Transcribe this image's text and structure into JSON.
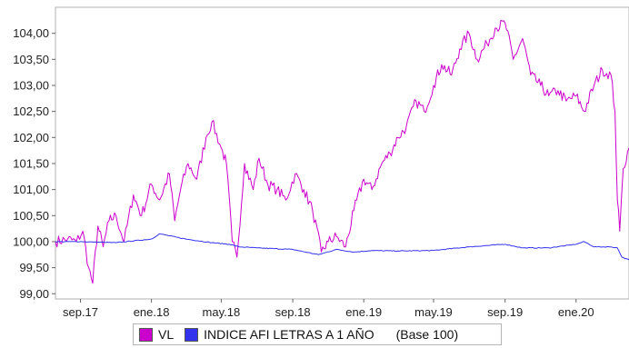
{
  "chart_data": {
    "type": "line",
    "ylim": [
      98.9,
      104.5
    ],
    "xlim": [
      "2017-07-20",
      "2020-04-01"
    ],
    "y_ticks": [
      "99,00",
      "99,50",
      "100,00",
      "100,50",
      "101,00",
      "101,50",
      "102,00",
      "102,50",
      "103,00",
      "103,50",
      "104,00"
    ],
    "y_tick_values": [
      99.0,
      99.5,
      100.0,
      100.5,
      101.0,
      101.5,
      102.0,
      102.5,
      103.0,
      103.5,
      104.0
    ],
    "x_ticks": [
      "sep.17",
      "ene.18",
      "may.18",
      "sep.18",
      "ene.19",
      "may.19",
      "sep.19",
      "ene.20"
    ],
    "x_tick_dates": [
      "2017-09-01",
      "2018-01-01",
      "2018-05-01",
      "2018-09-01",
      "2019-01-01",
      "2019-05-01",
      "2019-09-01",
      "2020-01-01"
    ],
    "grid": false,
    "legend_position": "bottom",
    "series": [
      {
        "name": "VL",
        "color": "#cc00cc",
        "x": [
          "2017-07-20",
          "2017-08-10",
          "2017-08-25",
          "2017-09-05",
          "2017-09-15",
          "2017-09-22",
          "2017-10-01",
          "2017-10-10",
          "2017-10-20",
          "2017-11-01",
          "2017-11-15",
          "2017-12-01",
          "2017-12-15",
          "2018-01-01",
          "2018-01-15",
          "2018-02-01",
          "2018-02-10",
          "2018-02-20",
          "2018-03-05",
          "2018-03-20",
          "2018-04-05",
          "2018-04-15",
          "2018-05-01",
          "2018-05-10",
          "2018-05-20",
          "2018-05-28",
          "2018-06-10",
          "2018-06-25",
          "2018-07-05",
          "2018-07-20",
          "2018-08-05",
          "2018-08-20",
          "2018-09-05",
          "2018-09-20",
          "2018-10-05",
          "2018-10-20",
          "2018-11-01",
          "2018-11-15",
          "2018-12-01",
          "2018-12-15",
          "2019-01-01",
          "2019-01-15",
          "2019-02-01",
          "2019-02-15",
          "2019-03-01",
          "2019-03-15",
          "2019-04-01",
          "2019-04-15",
          "2019-05-01",
          "2019-05-15",
          "2019-06-01",
          "2019-06-15",
          "2019-07-01",
          "2019-07-15",
          "2019-08-01",
          "2019-08-15",
          "2019-09-01",
          "2019-09-15",
          "2019-10-01",
          "2019-10-15",
          "2019-11-01",
          "2019-11-15",
          "2019-12-01",
          "2019-12-15",
          "2020-01-01",
          "2020-01-15",
          "2020-02-01",
          "2020-02-15",
          "2020-03-01",
          "2020-03-08",
          "2020-03-12",
          "2020-03-16",
          "2020-03-22",
          "2020-04-01"
        ],
        "values": [
          100.0,
          100.05,
          100.0,
          100.2,
          99.5,
          99.2,
          100.3,
          99.9,
          100.4,
          100.5,
          100.0,
          100.9,
          100.5,
          101.1,
          100.8,
          101.3,
          100.4,
          101.0,
          101.5,
          101.2,
          102.0,
          102.3,
          101.8,
          101.5,
          100.0,
          99.7,
          101.5,
          101.0,
          101.6,
          101.1,
          101.0,
          100.8,
          101.3,
          101.0,
          100.6,
          99.8,
          100.0,
          100.1,
          99.9,
          100.6,
          101.2,
          101.0,
          101.5,
          101.7,
          102.0,
          102.2,
          102.7,
          102.5,
          103.0,
          103.4,
          103.2,
          103.7,
          104.0,
          103.5,
          103.8,
          104.1,
          104.2,
          103.5,
          103.9,
          103.2,
          103.0,
          102.8,
          102.9,
          102.7,
          102.8,
          102.5,
          103.0,
          103.3,
          103.2,
          102.5,
          100.8,
          100.2,
          101.4,
          101.8
        ]
      },
      {
        "name": "INDICE AFI LETRAS A 1 AÑO",
        "color": "#3333ee",
        "x": [
          "2017-07-20",
          "2017-09-01",
          "2017-11-01",
          "2018-01-01",
          "2018-01-15",
          "2018-03-01",
          "2018-04-15",
          "2018-05-15",
          "2018-06-01",
          "2018-07-01",
          "2018-09-01",
          "2018-10-15",
          "2018-11-15",
          "2018-12-15",
          "2019-01-15",
          "2019-03-01",
          "2019-05-01",
          "2019-07-01",
          "2019-09-01",
          "2019-10-01",
          "2019-11-15",
          "2020-01-01",
          "2020-01-15",
          "2020-02-01",
          "2020-03-01",
          "2020-03-12",
          "2020-03-20",
          "2020-04-01"
        ],
        "values": [
          100.0,
          100.0,
          99.98,
          100.05,
          100.15,
          100.05,
          99.98,
          99.95,
          99.9,
          99.88,
          99.85,
          99.75,
          99.85,
          99.8,
          99.83,
          99.82,
          99.83,
          99.9,
          99.95,
          99.88,
          99.88,
          99.95,
          100.0,
          99.9,
          99.9,
          99.88,
          99.7,
          99.65
        ]
      }
    ],
    "legend_note": "(Base 100)"
  }
}
